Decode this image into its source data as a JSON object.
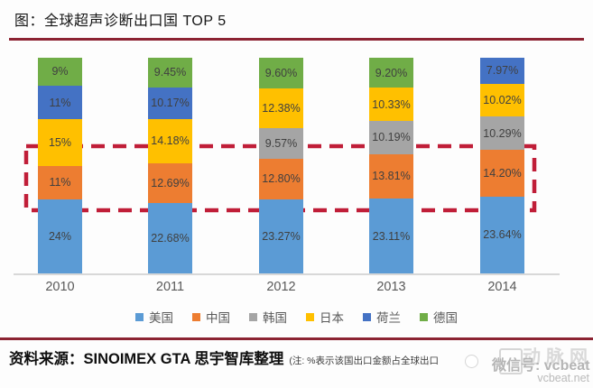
{
  "header": {
    "title": "图：全球超声诊断出口国 TOP 5"
  },
  "chart_data": {
    "type": "bar",
    "stacked": true,
    "title": "全球超声诊断出口国 TOP 5",
    "categories": [
      "2010",
      "2011",
      "2012",
      "2013",
      "2014"
    ],
    "legend_position": "bottom",
    "grid": false,
    "legend": [
      {
        "label": "美国",
        "color": "#5B9BD5"
      },
      {
        "label": "中国",
        "color": "#ED7D31"
      },
      {
        "label": "韩国",
        "color": "#A5A5A5"
      },
      {
        "label": "日本",
        "color": "#FFC000"
      },
      {
        "label": "荷兰",
        "color": "#4472C4"
      },
      {
        "label": "德国",
        "color": "#70AD47"
      }
    ],
    "bars": [
      {
        "year": "2010",
        "segments": [
          {
            "country": "美国",
            "value": 24,
            "label": "24%"
          },
          {
            "country": "中国",
            "value": 11,
            "label": "11%"
          },
          {
            "country": "日本",
            "value": 15,
            "label": "15%"
          },
          {
            "country": "荷兰",
            "value": 11,
            "label": "11%"
          },
          {
            "country": "德国",
            "value": 9,
            "label": "9%"
          }
        ]
      },
      {
        "year": "2011",
        "segments": [
          {
            "country": "美国",
            "value": 22.68,
            "label": "22.68%"
          },
          {
            "country": "中国",
            "value": 12.69,
            "label": "12.69%"
          },
          {
            "country": "日本",
            "value": 14.18,
            "label": "14.18%"
          },
          {
            "country": "荷兰",
            "value": 10.17,
            "label": "10.17%"
          },
          {
            "country": "德国",
            "value": 9.45,
            "label": "9.45%"
          }
        ]
      },
      {
        "year": "2012",
        "segments": [
          {
            "country": "美国",
            "value": 23.27,
            "label": "23.27%"
          },
          {
            "country": "中国",
            "value": 12.8,
            "label": "12.80%"
          },
          {
            "country": "韩国",
            "value": 9.57,
            "label": "9.57%"
          },
          {
            "country": "日本",
            "value": 12.38,
            "label": "12.38%"
          },
          {
            "country": "德国",
            "value": 9.6,
            "label": "9.60%"
          }
        ]
      },
      {
        "year": "2013",
        "segments": [
          {
            "country": "美国",
            "value": 23.11,
            "label": "23.11%"
          },
          {
            "country": "中国",
            "value": 13.81,
            "label": "13.81%"
          },
          {
            "country": "韩国",
            "value": 10.19,
            "label": "10.19%"
          },
          {
            "country": "日本",
            "value": 10.33,
            "label": "10.33%"
          },
          {
            "country": "德国",
            "value": 9.2,
            "label": "9.20%"
          }
        ]
      },
      {
        "year": "2014",
        "segments": [
          {
            "country": "美国",
            "value": 23.64,
            "label": "23.64%"
          },
          {
            "country": "中国",
            "value": 14.2,
            "label": "14.20%"
          },
          {
            "country": "韩国",
            "value": 10.29,
            "label": "10.29%"
          },
          {
            "country": "日本",
            "value": 10.02,
            "label": "10.02%"
          },
          {
            "country": "荷兰",
            "value": 7.97,
            "label": "7.97%"
          }
        ]
      }
    ],
    "annotation": {
      "shape": "dashed-rectangle",
      "color": "#C01E38",
      "highlights": "中国 segments across all years"
    }
  },
  "footer": {
    "source": "资料来源：SINOIMEX GTA  思宇智库整理",
    "note": "(注: %表示该国出口金额占全球出口",
    "watermark": {
      "brand": "动脉网",
      "wechat": "微信号: vcbeat",
      "site": "vcbeat.net"
    }
  },
  "colors": {
    "divider": "#8C2332",
    "axis_line": "#D8D8D8",
    "segment_label": "#404040",
    "year_label": "#595959"
  }
}
